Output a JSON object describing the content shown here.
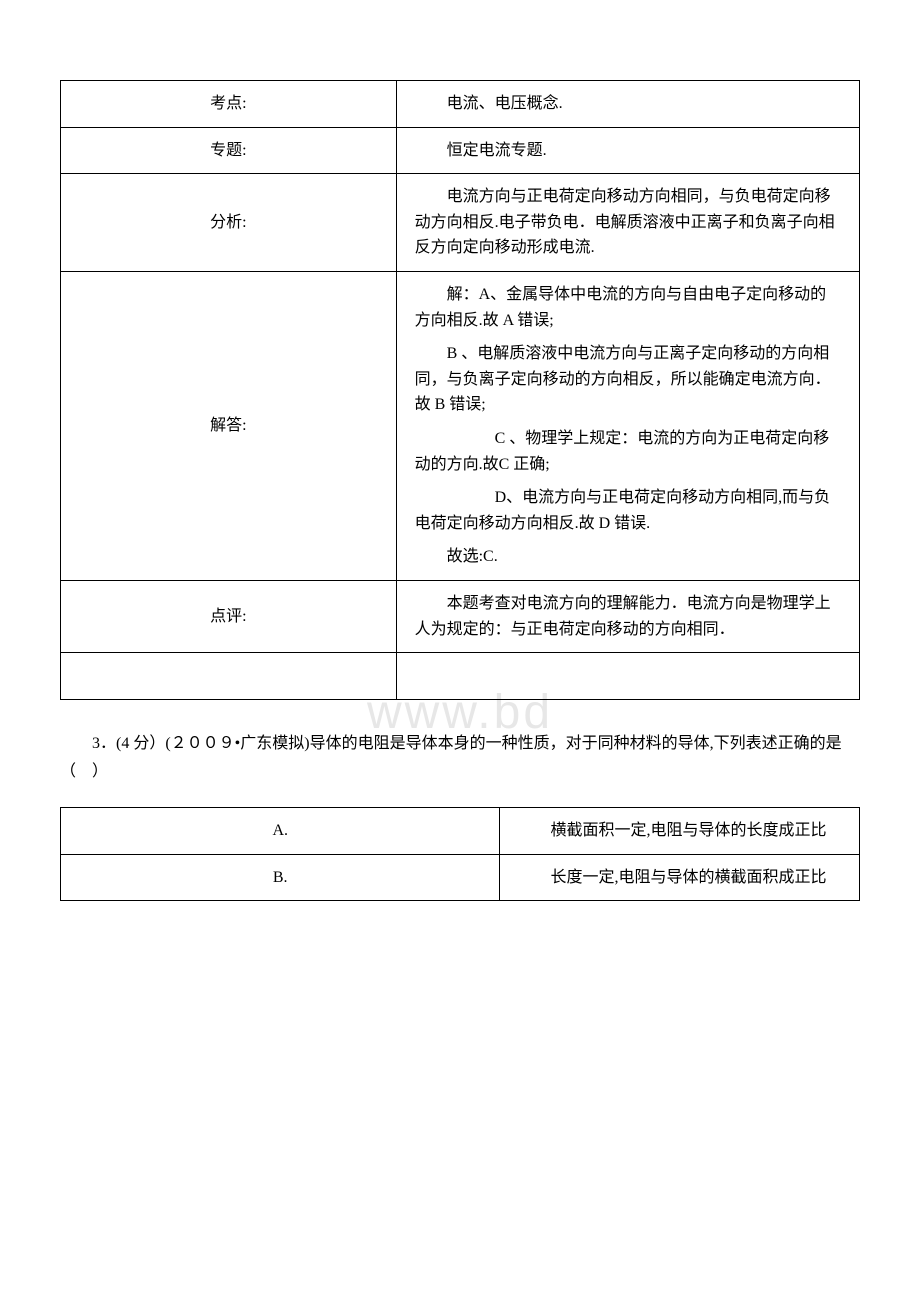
{
  "watermark": "www.bd",
  "table1": {
    "rows": [
      {
        "label": "考点:",
        "content": "电流、电压概念."
      },
      {
        "label": "专题:",
        "content": "恒定电流专题."
      },
      {
        "label": "分析:",
        "content": "电流方向与正电荷定向移动方向相同，与负电荷定向移动方向相反.电子带负电．电解质溶液中正离子和负离子向相反方向定向移动形成电流."
      },
      {
        "label": "解答:",
        "blocks": [
          "解：A、金属导体中电流的方向与自由电子定向移动的方向相反.故 A 错误;",
          "B 、电解质溶液中电流方向与正离子定向移动的方向相同，与负离子定向移动的方向相反，所以能确定电流方向．故 B 错误;",
          "C 、物理学上规定：电流的方向为正电荷定向移动的方向.故C 正确;",
          "D、电流方向与正电荷定向移动方向相同,而与负电荷定向移动方向相反.故 D 错误.",
          "故选:C."
        ]
      },
      {
        "label": "点评:",
        "content": "本题考查对电流方向的理解能力．电流方向是物理学上人为规定的：与正电荷定向移动的方向相同．"
      }
    ]
  },
  "question3": {
    "text": "3．(4 分）(２００９•广东模拟)导体的电阻是导体本身的一种性质，对于同种材料的导体,下列表述正确的是（　）",
    "options": [
      {
        "label": "A.",
        "content": "横截面积一定,电阻与导体的长度成正比"
      },
      {
        "label": "B.",
        "content": "长度一定,电阻与导体的横截面积成正比"
      }
    ]
  }
}
